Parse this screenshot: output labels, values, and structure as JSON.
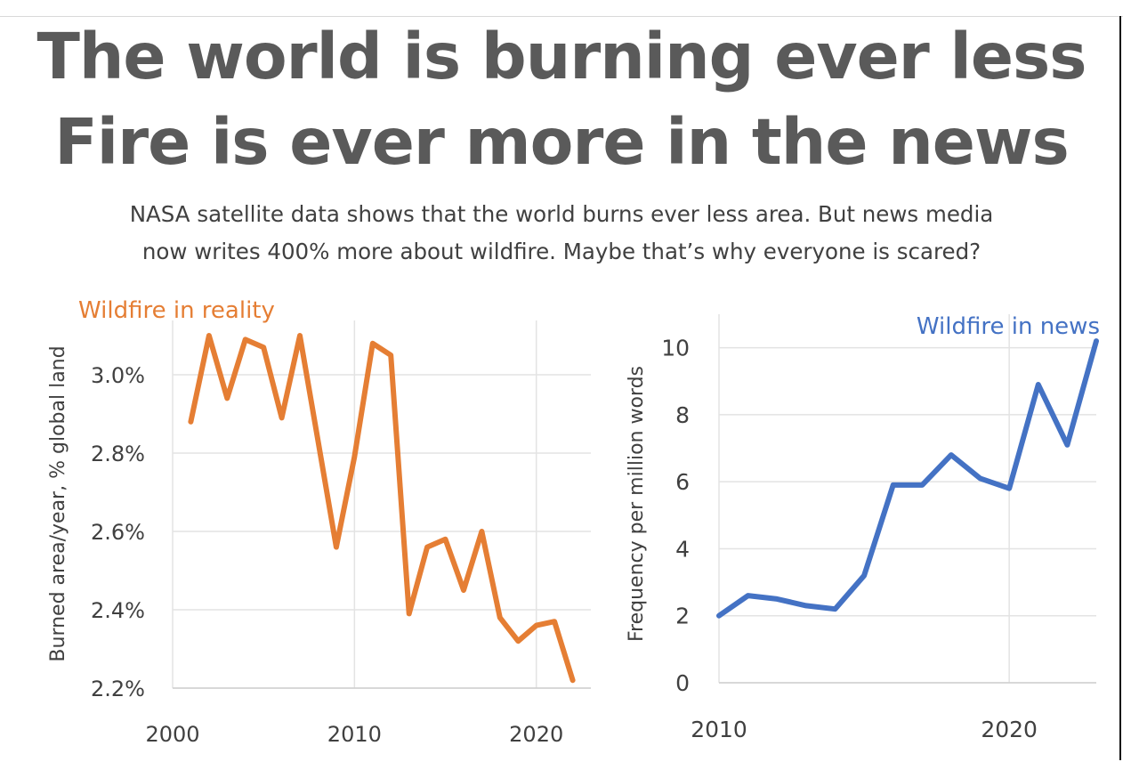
{
  "header": {
    "title_line1": "The world is burning ever less",
    "title_line2": "Fire is ever more in the news",
    "subtitle_line1": "NASA satellite data shows that the world burns ever less area. But news media",
    "subtitle_line2": "now writes 400% more about wildfire. Maybe that’s why everyone is scared?"
  },
  "colors": {
    "reality": "#E57E34",
    "news": "#4472C4",
    "grid": "#e3e3e3",
    "tick_text": "#404040",
    "title_text": "#5a5a5a"
  },
  "chart_data": [
    {
      "type": "line",
      "title": "Wildfire in reality",
      "xlabel": "",
      "ylabel": "Burned area/year, % global land",
      "xlim": [
        2000,
        2023
      ],
      "ylim": [
        2.2,
        3.1
      ],
      "xticks": [
        2000,
        2010,
        2020
      ],
      "xtick_labels": [
        "2000",
        "2010",
        "2020"
      ],
      "yticks": [
        2.2,
        2.4,
        2.6,
        2.8,
        3.0
      ],
      "ytick_labels": [
        "2.2%",
        "2.4%",
        "2.6%",
        "2.8%",
        "3.0%"
      ],
      "series": [
        {
          "name": "Wildfire in reality",
          "x": [
            2001,
            2002,
            2003,
            2004,
            2005,
            2006,
            2007,
            2008,
            2009,
            2010,
            2011,
            2012,
            2013,
            2014,
            2015,
            2016,
            2017,
            2018,
            2019,
            2020,
            2021,
            2022
          ],
          "values": [
            2.88,
            3.1,
            2.94,
            3.09,
            3.07,
            2.89,
            3.1,
            2.83,
            2.56,
            2.79,
            3.08,
            3.05,
            2.39,
            2.56,
            2.58,
            2.45,
            2.6,
            2.38,
            2.32,
            2.36,
            2.37,
            2.22
          ]
        }
      ]
    },
    {
      "type": "line",
      "title": "Wildfire in news",
      "xlabel": "",
      "ylabel": "Frequency per million words",
      "xlim": [
        2010,
        2023
      ],
      "ylim": [
        0,
        11
      ],
      "xticks": [
        2010,
        2020
      ],
      "xtick_labels": [
        "2010",
        "2020"
      ],
      "yticks": [
        0,
        2,
        4,
        6,
        8,
        10
      ],
      "ytick_labels": [
        "0",
        "2",
        "4",
        "6",
        "8",
        "10"
      ],
      "series": [
        {
          "name": "Wildfire in news",
          "x": [
            2010,
            2011,
            2012,
            2013,
            2014,
            2015,
            2016,
            2017,
            2018,
            2019,
            2020,
            2021,
            2022,
            2023
          ],
          "values": [
            2.0,
            2.6,
            2.5,
            2.3,
            2.2,
            3.2,
            5.9,
            5.9,
            6.8,
            6.1,
            5.8,
            8.9,
            7.1,
            10.2
          ]
        }
      ]
    }
  ]
}
